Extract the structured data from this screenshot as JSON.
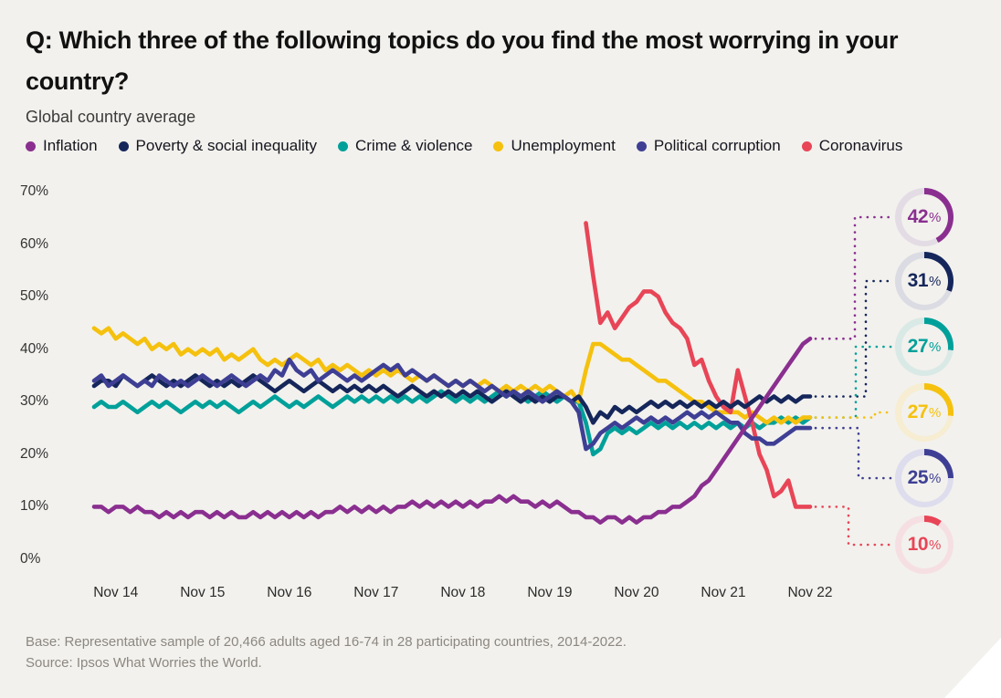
{
  "title_line1": "Q: Which three of the following topics do you find the most worrying in your",
  "title_line2": "country?",
  "subtitle": "Global country average",
  "colors": {
    "page_bg": "#F2F1ED",
    "corner_cut": "#FFFFFF",
    "title_text": "#111111",
    "muted_text": "#8C8780",
    "axis_text": "#333333"
  },
  "legend": [
    {
      "label": "Inflation",
      "color": "#8A2F90"
    },
    {
      "label": "Poverty & social inequality",
      "color": "#15265B"
    },
    {
      "label": "Crime & violence",
      "color": "#00A09A"
    },
    {
      "label": "Unemployment",
      "color": "#F5C10E"
    },
    {
      "label": "Political corruption",
      "color": "#3E3F94"
    },
    {
      "label": "Coronavirus",
      "color": "#E84557"
    }
  ],
  "chart_data": {
    "type": "line",
    "x_interval": "monthly",
    "x_start": "Aug 2014",
    "x_end": "Nov 2022",
    "x_tick_labels": [
      "Nov 14",
      "Nov 15",
      "Nov 16",
      "Nov 17",
      "Nov 18",
      "Nov 19",
      "Nov 20",
      "Nov 21",
      "Nov 22"
    ],
    "y_ticks": [
      {
        "value": 0,
        "label": "0%"
      },
      {
        "value": 10,
        "label": "10%"
      },
      {
        "value": 20,
        "label": "20%"
      },
      {
        "value": 30,
        "label": "30%"
      },
      {
        "value": 40,
        "label": "40%"
      },
      {
        "value": 50,
        "label": "50%"
      },
      {
        "value": 60,
        "label": "60%"
      },
      {
        "value": 70,
        "label": "70%"
      }
    ],
    "ylim": [
      0,
      70
    ],
    "grid": false,
    "legend_position": "top",
    "series": [
      {
        "name": "Inflation",
        "color": "#8A2F90",
        "track_color": "#E3DCE5",
        "badge_label": "42%",
        "badge_value": 42,
        "start_index": 0,
        "values": [
          10,
          10,
          9,
          10,
          10,
          9,
          10,
          9,
          9,
          8,
          9,
          8,
          9,
          8,
          9,
          9,
          8,
          9,
          8,
          9,
          8,
          8,
          9,
          8,
          9,
          8,
          9,
          8,
          9,
          8,
          9,
          8,
          9,
          9,
          10,
          9,
          10,
          9,
          10,
          9,
          10,
          9,
          10,
          10,
          11,
          10,
          11,
          10,
          11,
          10,
          11,
          10,
          11,
          10,
          11,
          11,
          12,
          11,
          12,
          11,
          11,
          10,
          11,
          10,
          11,
          10,
          9,
          9,
          8,
          8,
          7,
          8,
          8,
          7,
          8,
          7,
          8,
          8,
          9,
          9,
          10,
          10,
          11,
          12,
          14,
          15,
          17,
          19,
          21,
          23,
          25,
          27,
          29,
          31,
          33,
          35,
          37,
          39,
          41,
          42
        ]
      },
      {
        "name": "Poverty & social inequality",
        "color": "#15265B",
        "track_color": "#DBDBE3",
        "badge_label": "31%",
        "badge_value": 31,
        "start_index": 0,
        "values": [
          33,
          34,
          34,
          33,
          35,
          34,
          33,
          34,
          35,
          34,
          33,
          34,
          33,
          34,
          35,
          34,
          33,
          34,
          33,
          34,
          33,
          34,
          35,
          34,
          33,
          32,
          33,
          34,
          33,
          32,
          33,
          34,
          33,
          32,
          33,
          32,
          33,
          32,
          33,
          32,
          33,
          32,
          31,
          32,
          33,
          32,
          31,
          32,
          31,
          32,
          31,
          32,
          31,
          32,
          31,
          30,
          31,
          32,
          31,
          30,
          31,
          30,
          31,
          30,
          31,
          31,
          30,
          31,
          29,
          26,
          28,
          27,
          29,
          28,
          29,
          28,
          29,
          30,
          29,
          30,
          29,
          30,
          29,
          30,
          29,
          30,
          29,
          30,
          29,
          30,
          29,
          30,
          31,
          30,
          31,
          30,
          31,
          30,
          31,
          31
        ]
      },
      {
        "name": "Crime & violence",
        "color": "#00A09A",
        "track_color": "#D9E9E6",
        "badge_label": "27%",
        "badge_value": 27,
        "start_index": 0,
        "values": [
          29,
          30,
          29,
          29,
          30,
          29,
          28,
          29,
          30,
          29,
          30,
          29,
          28,
          29,
          30,
          29,
          30,
          29,
          30,
          29,
          28,
          29,
          30,
          29,
          30,
          31,
          30,
          29,
          30,
          29,
          30,
          31,
          30,
          29,
          30,
          31,
          30,
          31,
          30,
          31,
          30,
          31,
          30,
          31,
          30,
          31,
          30,
          31,
          32,
          31,
          30,
          31,
          30,
          31,
          30,
          31,
          32,
          31,
          32,
          31,
          30,
          31,
          32,
          31,
          30,
          31,
          30,
          30,
          26,
          20,
          21,
          24,
          25,
          24,
          25,
          24,
          25,
          26,
          25,
          26,
          25,
          26,
          25,
          26,
          25,
          26,
          25,
          26,
          25,
          26,
          25,
          26,
          25,
          26,
          26,
          27,
          26,
          27,
          26,
          27
        ]
      },
      {
        "name": "Unemployment",
        "color": "#F5C10E",
        "track_color": "#F6EDD2",
        "badge_label": "27%",
        "badge_value": 27,
        "start_index": 0,
        "values": [
          44,
          43,
          44,
          42,
          43,
          42,
          41,
          42,
          40,
          41,
          40,
          41,
          39,
          40,
          39,
          40,
          39,
          40,
          38,
          39,
          38,
          39,
          40,
          38,
          37,
          38,
          37,
          38,
          39,
          38,
          37,
          38,
          36,
          37,
          36,
          37,
          36,
          35,
          36,
          35,
          36,
          35,
          36,
          35,
          34,
          35,
          34,
          35,
          34,
          33,
          34,
          33,
          34,
          33,
          34,
          33,
          32,
          33,
          32,
          33,
          32,
          33,
          32,
          33,
          32,
          31,
          32,
          30,
          36,
          41,
          41,
          40,
          39,
          38,
          38,
          37,
          36,
          35,
          34,
          34,
          33,
          32,
          31,
          30,
          30,
          29,
          28,
          28,
          28,
          28,
          27,
          28,
          27,
          26,
          27,
          26,
          27,
          26,
          27,
          27
        ]
      },
      {
        "name": "Political corruption",
        "color": "#3E3F94",
        "track_color": "#DDDDEE",
        "badge_label": "25%",
        "badge_value": 25,
        "start_index": 0,
        "values": [
          34,
          35,
          33,
          34,
          35,
          34,
          33,
          34,
          33,
          35,
          34,
          33,
          34,
          33,
          34,
          35,
          34,
          33,
          34,
          35,
          34,
          33,
          34,
          35,
          34,
          36,
          35,
          38,
          36,
          35,
          36,
          34,
          35,
          36,
          35,
          34,
          35,
          34,
          35,
          36,
          37,
          36,
          37,
          35,
          36,
          35,
          34,
          35,
          34,
          33,
          34,
          33,
          34,
          33,
          32,
          33,
          32,
          31,
          32,
          31,
          32,
          31,
          30,
          31,
          32,
          31,
          30,
          28,
          21,
          22,
          24,
          25,
          26,
          25,
          26,
          27,
          26,
          27,
          26,
          27,
          26,
          27,
          28,
          27,
          28,
          27,
          28,
          27,
          26,
          26,
          24,
          23,
          23,
          22,
          22,
          23,
          24,
          25,
          25,
          25
        ]
      },
      {
        "name": "Coronavirus",
        "color": "#E84557",
        "track_color": "#F6DFE3",
        "badge_label": "10%",
        "badge_value": 10,
        "start_index": 68,
        "start_date": "Apr 2020",
        "values": [
          64,
          54,
          45,
          47,
          44,
          46,
          48,
          49,
          51,
          51,
          50,
          47,
          45,
          44,
          42,
          37,
          38,
          34,
          31,
          29,
          28,
          36,
          31,
          26,
          20,
          17,
          12,
          13,
          15,
          10,
          10,
          10
        ]
      }
    ]
  },
  "footer": {
    "base": "Base: Representative sample of 20,466 adults aged 16-74 in 28 participating countries, 2014-2022.",
    "source": "Source: Ipsos What Worries the World."
  }
}
